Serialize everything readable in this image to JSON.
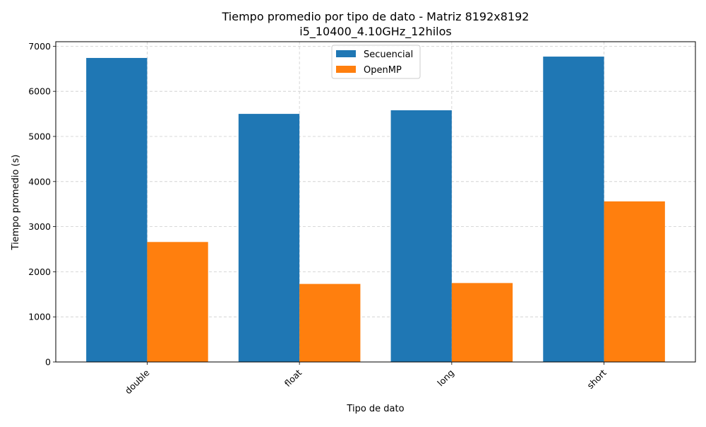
{
  "chart_data": {
    "type": "bar",
    "title": "Tiempo promedio por tipo de dato - Matriz 8192x8192",
    "subtitle": "i5_10400_4.10GHz_12hilos",
    "xlabel": "Tipo de dato",
    "ylabel": "Tiempo promedio (s)",
    "categories": [
      "double",
      "float",
      "long",
      "short"
    ],
    "series": [
      {
        "name": "Secuencial",
        "color": "#1f77b4",
        "values": [
          6740,
          5500,
          5580,
          6770
        ]
      },
      {
        "name": "OpenMP",
        "color": "#ff7f0e",
        "values": [
          2660,
          1730,
          1750,
          3560
        ]
      }
    ],
    "ylim": [
      0,
      7100
    ],
    "yticks": [
      0,
      1000,
      2000,
      3000,
      4000,
      5000,
      6000,
      7000
    ],
    "ytick_labels": [
      "0",
      "1000",
      "2000",
      "3000",
      "4000",
      "5000",
      "6000",
      "7000"
    ],
    "grid": true,
    "legend_position": "top-center",
    "x_tick_rotation": 45
  }
}
